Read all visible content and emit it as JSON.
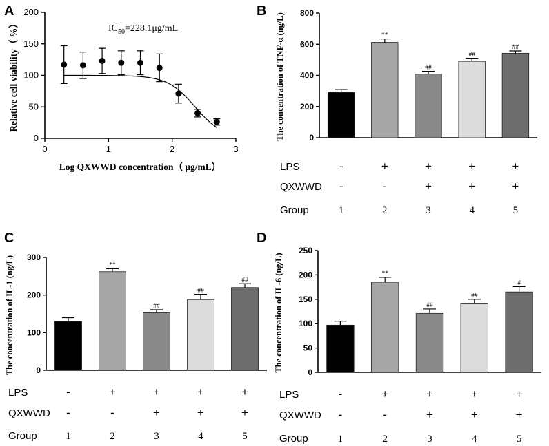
{
  "chart_data": [
    {
      "panel": "A",
      "type": "scatter",
      "title": "",
      "annotation_prefix": "IC",
      "annotation_sub": "50",
      "annotation_suffix": "=228.1μg/mL",
      "xlabel": "Log QXWWD concentration（ μg/mL）",
      "ylabel": "Relative cell viability（ %）",
      "xlim": [
        0,
        3
      ],
      "ylim": [
        0,
        200
      ],
      "xticks": [
        0,
        1,
        2,
        3
      ],
      "yticks": [
        0,
        50,
        100,
        150,
        200
      ],
      "x": [
        0.3,
        0.6,
        0.9,
        1.2,
        1.5,
        1.8,
        2.1,
        2.4,
        2.7
      ],
      "y": [
        117,
        116,
        123,
        120,
        120,
        112,
        71,
        40,
        26
      ],
      "error": [
        30,
        21,
        20,
        19,
        19,
        22,
        15,
        6,
        5
      ],
      "fit": {
        "top": 100,
        "bottom": 0,
        "log_ic50": 2.36,
        "hill": 2.0,
        "x_range": [
          0.3,
          2.7
        ]
      }
    },
    {
      "panel": "B",
      "type": "bar",
      "ylabel": "The concentration of TNF-α (ng/L)",
      "ylim": [
        0,
        800
      ],
      "yticks": [
        0,
        200,
        400,
        600,
        800
      ],
      "categories": [
        "1",
        "2",
        "3",
        "4",
        "5"
      ],
      "values": [
        290,
        612,
        408,
        490,
        542
      ],
      "error": [
        20,
        22,
        18,
        20,
        15
      ],
      "significance": [
        "",
        "**",
        "##",
        "##",
        "##"
      ],
      "colors": [
        "#000000",
        "#a6a6a6",
        "#8a8a8a",
        "#dcdcdc",
        "#6e6e6e"
      ],
      "rows": [
        {
          "label": "LPS",
          "values": [
            "-",
            "+",
            "+",
            "+",
            "+"
          ]
        },
        {
          "label": "QXWWD",
          "values": [
            "-",
            "-",
            "+",
            "+",
            "+"
          ]
        },
        {
          "label": "Group",
          "values": [
            "1",
            "2",
            "3",
            "4",
            "5"
          ]
        }
      ]
    },
    {
      "panel": "C",
      "type": "bar",
      "ylabel": "The concentration of IL-1 (ng/L)",
      "ylim": [
        0,
        300
      ],
      "yticks": [
        0,
        100,
        200,
        300
      ],
      "categories": [
        "1",
        "2",
        "3",
        "4",
        "5"
      ],
      "values": [
        130,
        262,
        153,
        188,
        220
      ],
      "error": [
        10,
        8,
        8,
        14,
        10
      ],
      "significance": [
        "",
        "**",
        "##",
        "##",
        "##"
      ],
      "colors": [
        "#000000",
        "#a6a6a6",
        "#8a8a8a",
        "#dcdcdc",
        "#6e6e6e"
      ],
      "rows": [
        {
          "label": "LPS",
          "values": [
            "-",
            "+",
            "+",
            "+",
            "+"
          ]
        },
        {
          "label": "QXWWD",
          "values": [
            "-",
            "-",
            "+",
            "+",
            "+"
          ]
        },
        {
          "label": "Group",
          "values": [
            "1",
            "2",
            "3",
            "4",
            "5"
          ]
        }
      ]
    },
    {
      "panel": "D",
      "type": "bar",
      "ylabel": "The concentration of IL-6 (ng/L)",
      "ylim": [
        0,
        250
      ],
      "yticks": [
        0,
        50,
        100,
        150,
        200,
        250
      ],
      "categories": [
        "1",
        "2",
        "3",
        "4",
        "5"
      ],
      "values": [
        97,
        185,
        121,
        142,
        165
      ],
      "error": [
        8,
        10,
        9,
        8,
        11
      ],
      "significance": [
        "",
        "**",
        "##",
        "##",
        "#"
      ],
      "colors": [
        "#000000",
        "#a6a6a6",
        "#8a8a8a",
        "#dcdcdc",
        "#6e6e6e"
      ],
      "rows": [
        {
          "label": "LPS",
          "values": [
            "-",
            "+",
            "+",
            "+",
            "+"
          ]
        },
        {
          "label": "QXWWD",
          "values": [
            "-",
            "-",
            "+",
            "+",
            "+"
          ]
        },
        {
          "label": "Group",
          "values": [
            "1",
            "2",
            "3",
            "4",
            "5"
          ]
        }
      ]
    }
  ]
}
